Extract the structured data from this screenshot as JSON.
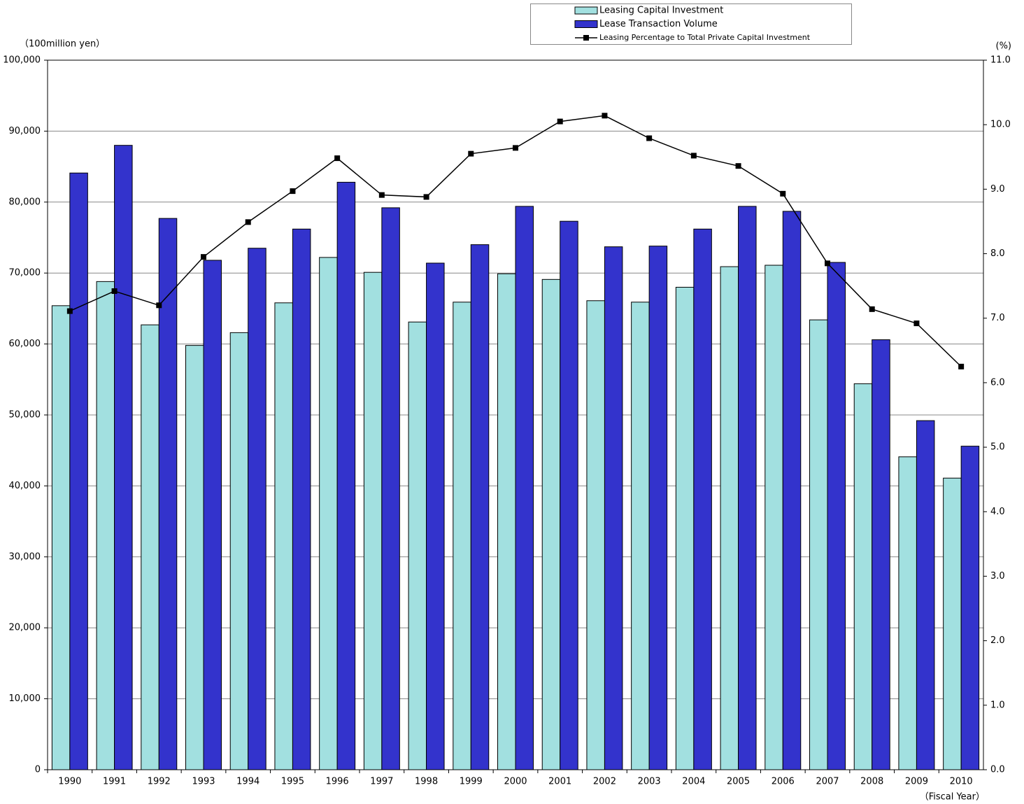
{
  "chart_data": {
    "type": "bar-line",
    "y_label": "（100million yen）",
    "y2_label": "(%)",
    "x_label": "（Fiscal Year）",
    "categories": [
      "1990",
      "1991",
      "1992",
      "1993",
      "1994",
      "1995",
      "1996",
      "1997",
      "1998",
      "1999",
      "2000",
      "2001",
      "2002",
      "2003",
      "2004",
      "2005",
      "2006",
      "2007",
      "2008",
      "2009",
      "2010"
    ],
    "series": [
      {
        "name": "Leasing Capital Investment",
        "type": "bar",
        "color": "#a2e0e0",
        "values": [
          65400,
          68800,
          62700,
          59800,
          61600,
          65800,
          72200,
          70100,
          63100,
          65900,
          69900,
          69100,
          66100,
          65900,
          68000,
          70900,
          71100,
          63400,
          54400,
          44100,
          41100
        ]
      },
      {
        "name": "Lease Transaction Volume",
        "type": "bar",
        "color": "#3333cc",
        "values": [
          84100,
          88000,
          77700,
          71800,
          73500,
          76200,
          82800,
          79200,
          71400,
          74000,
          79400,
          77300,
          73700,
          73800,
          76200,
          79400,
          78700,
          71500,
          60600,
          49200,
          45600
        ]
      },
      {
        "name": "Leasing Percentage to Total Private Capital Investment",
        "type": "line",
        "axis": "y2",
        "color": "#000000",
        "values": [
          7.11,
          7.42,
          7.2,
          7.95,
          8.49,
          8.97,
          9.48,
          8.91,
          8.88,
          9.55,
          9.64,
          10.05,
          10.14,
          9.79,
          9.52,
          9.36,
          8.93,
          7.85,
          7.14,
          6.92,
          6.25
        ]
      }
    ],
    "ylim": [
      0,
      100000
    ],
    "yticks": [
      0,
      {
        "value": 10000,
        "label": "10,000"
      },
      {
        "value": 20000,
        "label": "20,000"
      },
      {
        "value": 30000,
        "label": "30,000"
      },
      {
        "value": 40000,
        "label": "40,000"
      },
      {
        "value": 50000,
        "label": "50,000"
      },
      {
        "value": 60000,
        "label": "60,000"
      },
      {
        "value": 70000,
        "label": "70,000"
      },
      {
        "value": 80000,
        "label": "80,000"
      },
      {
        "value": 90000,
        "label": "90,000"
      },
      {
        "value": 100000,
        "label": "100,000"
      }
    ],
    "y2lim": [
      0,
      11
    ],
    "y2ticks": [
      {
        "value": 0,
        "label": "0.0"
      },
      {
        "value": 1,
        "label": "1.0"
      },
      {
        "value": 2,
        "label": "2.0"
      },
      {
        "value": 3,
        "label": "3.0"
      },
      {
        "value": 4,
        "label": "4.0"
      },
      {
        "value": 5,
        "label": "5.0"
      },
      {
        "value": 6,
        "label": "6.0"
      },
      {
        "value": 7,
        "label": "7.0"
      },
      {
        "value": 8,
        "label": "8.0"
      },
      {
        "value": 9,
        "label": "9.0"
      },
      {
        "value": 10,
        "label": "10.0"
      },
      {
        "value": 11,
        "label": "11.0"
      }
    ],
    "grid": true,
    "legend": "top"
  }
}
